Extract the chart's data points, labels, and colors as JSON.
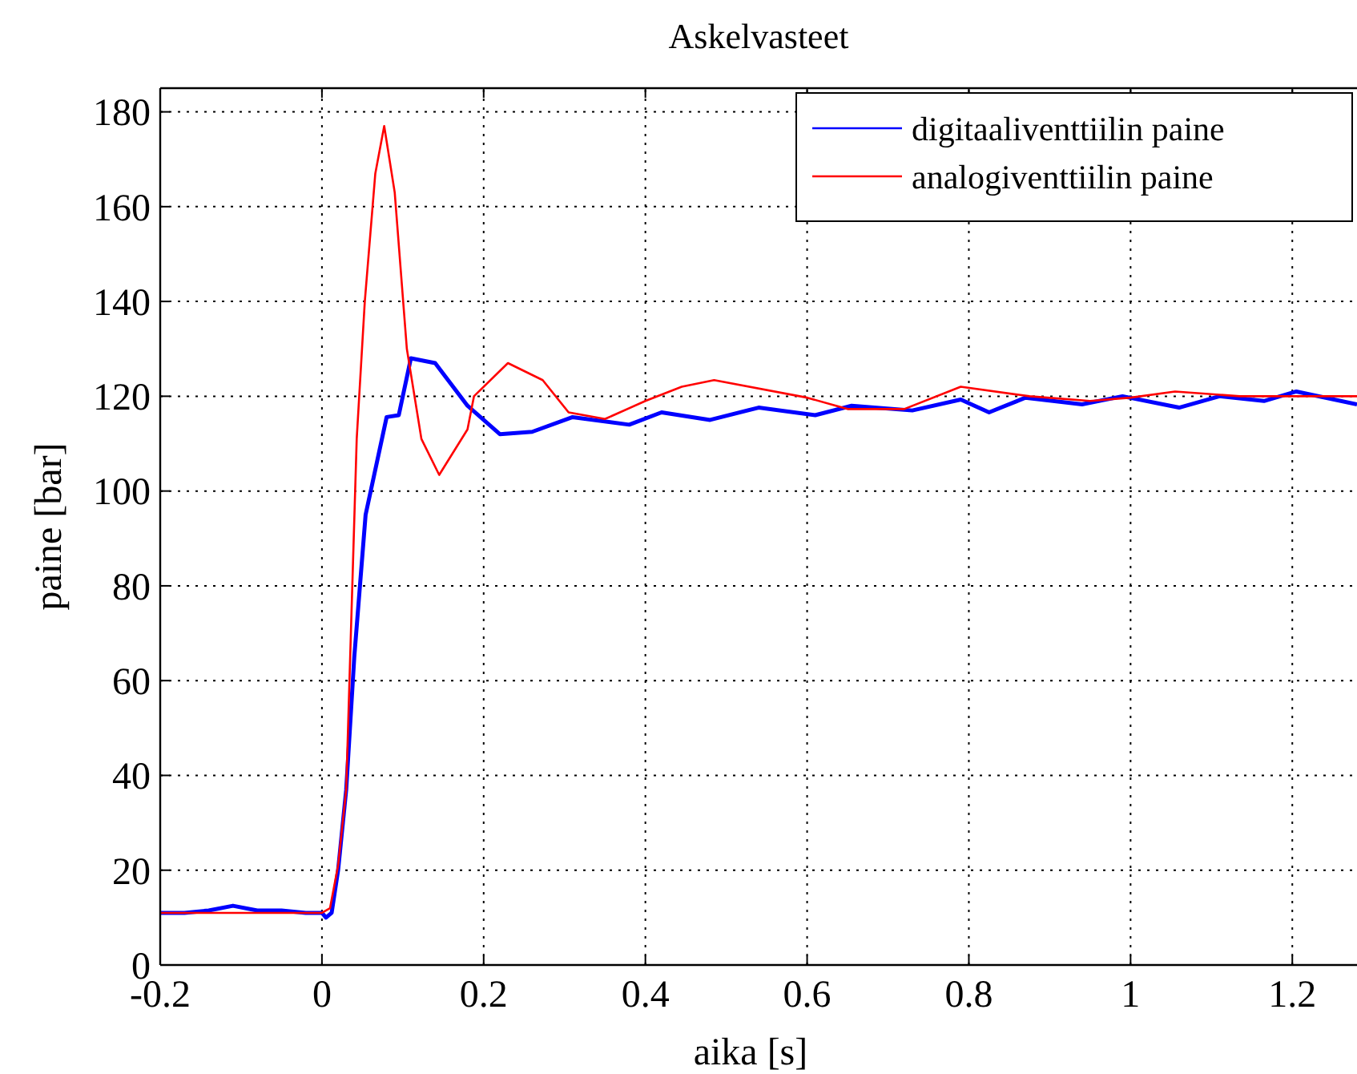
{
  "chart_data": {
    "type": "line",
    "title": "Askelvasteet",
    "xlabel": "aika [s]",
    "ylabel": "paine [bar]",
    "xlim": [
      -0.2,
      1.28
    ],
    "ylim": [
      0,
      185
    ],
    "xticks": [
      -0.2,
      0,
      0.2,
      0.4,
      0.6,
      0.8,
      1,
      1.2
    ],
    "yticks": [
      0,
      20,
      40,
      60,
      80,
      100,
      120,
      140,
      160,
      180
    ],
    "grid": true,
    "legend": "top right",
    "line_style": "solid",
    "series": [
      {
        "name": "digitaaliventtiilin paine",
        "color": "#0000ff",
        "x": [
          -0.2,
          -0.17,
          -0.14,
          -0.11,
          -0.08,
          -0.05,
          -0.02,
          0,
          0.005,
          0.012,
          0.02,
          0.03,
          0.04,
          0.054,
          0.08,
          0.095,
          0.11,
          0.14,
          0.18,
          0.22,
          0.26,
          0.31,
          0.38,
          0.42,
          0.48,
          0.54,
          0.61,
          0.655,
          0.73,
          0.79,
          0.825,
          0.87,
          0.94,
          0.99,
          1.06,
          1.11,
          1.165,
          1.205,
          1.28
        ],
        "values": [
          11,
          11,
          11.5,
          12.5,
          11.5,
          11.5,
          11,
          11,
          10,
          11,
          20,
          37,
          65,
          95,
          115.6,
          116,
          128,
          127,
          118,
          112,
          112.5,
          115.6,
          114,
          116.6,
          115,
          117.6,
          116,
          118,
          117,
          119.3,
          116.6,
          119.7,
          118.3,
          120,
          117.6,
          120,
          119,
          121,
          118.3
        ]
      },
      {
        "name": "analogiventtiilin paine",
        "color": "#ff0000",
        "x": [
          -0.2,
          -0.1,
          0,
          0.01,
          0.02,
          0.03,
          0.043,
          0.053,
          0.066,
          0.077,
          0.09,
          0.105,
          0.123,
          0.145,
          0.18,
          0.188,
          0.23,
          0.273,
          0.305,
          0.35,
          0.4,
          0.445,
          0.485,
          0.6,
          0.65,
          0.72,
          0.79,
          0.875,
          0.95,
          1,
          1.055,
          1.135,
          1.28
        ],
        "values": [
          11,
          11,
          11,
          12,
          21,
          37,
          111,
          140,
          167,
          177,
          163,
          130,
          111,
          103.4,
          113,
          120,
          127,
          123.4,
          116.6,
          115.2,
          119,
          122,
          123.4,
          119.7,
          117.3,
          117.3,
          122,
          120,
          119,
          119.7,
          121,
          120,
          120
        ]
      }
    ]
  }
}
